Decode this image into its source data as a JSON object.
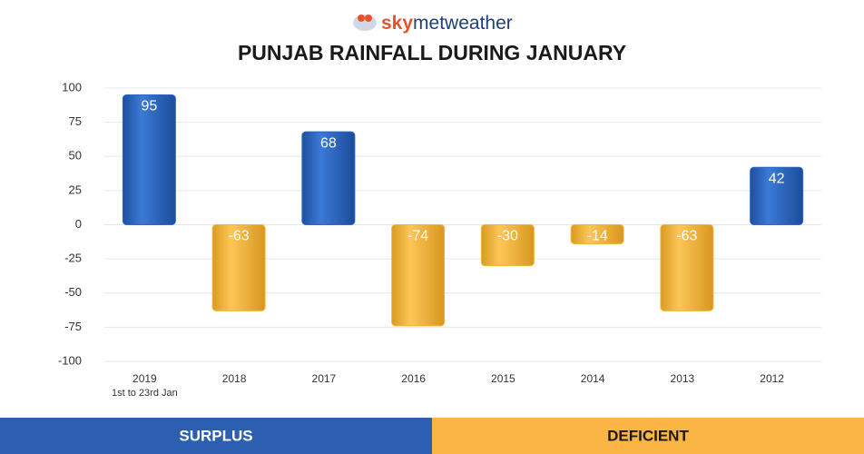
{
  "brand": {
    "part1": "sky",
    "part2": "metweather"
  },
  "chart_data": {
    "type": "bar",
    "title": "PUNJAB RAINFALL DURING JANUARY",
    "categories": [
      "2019",
      "2018",
      "2017",
      "2016",
      "2015",
      "2014",
      "2013",
      "2012"
    ],
    "annotation": "1st to 23rd Jan",
    "values": [
      95,
      -63,
      68,
      -74,
      -30,
      -14,
      -63,
      42
    ],
    "colors": {
      "positive": "#2c68c4",
      "negative": "#f5b53f"
    },
    "ylim": [
      -100,
      100
    ],
    "yticks": [
      100,
      75,
      50,
      25,
      0,
      -25,
      -50,
      -75,
      -100
    ],
    "grid": true,
    "legend": [
      {
        "name": "SURPLUS",
        "color": "#2d5fb0"
      },
      {
        "name": "DEFICIENT",
        "color": "#fbb544"
      }
    ]
  }
}
